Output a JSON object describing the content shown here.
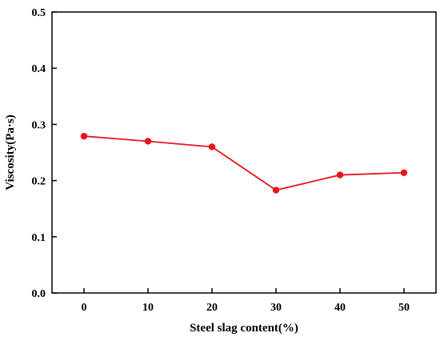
{
  "chart_data": {
    "type": "line",
    "title": "",
    "xlabel": "Steel slag content(%)",
    "ylabel": "Viscosity(Pa·s)",
    "x": [
      0,
      10,
      20,
      30,
      40,
      50
    ],
    "series": [
      {
        "values": [
          0.279,
          0.27,
          0.26,
          0.183,
          0.21,
          0.214
        ],
        "color": "#e8141b"
      }
    ],
    "xlim": [
      -5,
      55
    ],
    "ylim": [
      0,
      0.5
    ],
    "xticks": [
      "0",
      "10",
      "20",
      "30",
      "40",
      "50"
    ],
    "yticks": [
      "0.0",
      "0.1",
      "0.2",
      "0.3",
      "0.4",
      "0.5"
    ],
    "grid": false,
    "legend": "none",
    "marker": "circle"
  }
}
